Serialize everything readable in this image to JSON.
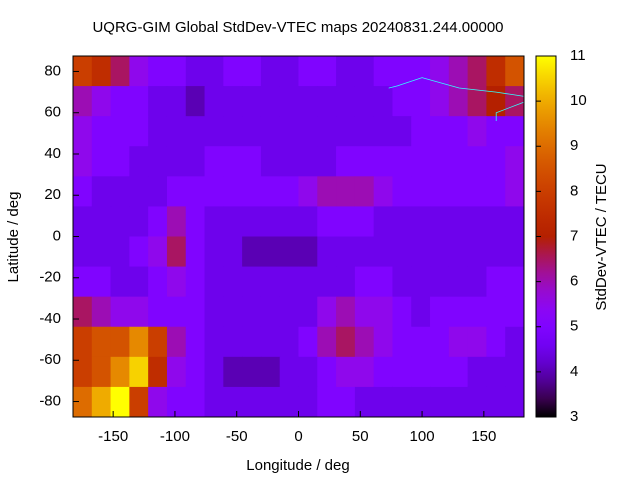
{
  "chart_data": {
    "type": "heatmap",
    "title": "UQRG-GIM Global StdDev-VTEC maps 20240831.244.00000",
    "x_label": "Longitude / deg",
    "y_label": "Latitude / deg",
    "colorbar_label": "StdDev-VTEC / TECU",
    "xlim": [
      -182.5,
      182.5
    ],
    "ylim": [
      -87.5,
      87.5
    ],
    "xticks": [
      -150,
      -100,
      -50,
      0,
      50,
      100,
      150
    ],
    "yticks": [
      -80,
      -60,
      -40,
      -20,
      0,
      20,
      40,
      60,
      80
    ],
    "zlim": [
      3,
      11
    ],
    "zticks": [
      3,
      4,
      5,
      6,
      7,
      8,
      9,
      10,
      11
    ],
    "palette": "rgbformulae-7-5-15",
    "coastline_color": "#33ffff",
    "z": [
      [
        8,
        7.5,
        6.5,
        5.5,
        5,
        5,
        4.5,
        4.5,
        5,
        5,
        4.5,
        4.5,
        5,
        5,
        4.5,
        4.5,
        5,
        5,
        5,
        5.5,
        6,
        6.5,
        7.5,
        8.5
      ],
      [
        6,
        5.5,
        5,
        5,
        4.5,
        4.5,
        4,
        4.5,
        4.5,
        4.5,
        4.5,
        4.5,
        4.5,
        4.5,
        4.5,
        4.5,
        4.5,
        5,
        5,
        5.5,
        6,
        6.5,
        7,
        6.5
      ],
      [
        5.5,
        5,
        5,
        5,
        4.5,
        4.5,
        4.5,
        4.5,
        4.5,
        4.5,
        4.5,
        4.5,
        4.5,
        4.5,
        4.5,
        4.5,
        4.5,
        4.5,
        5,
        5,
        5,
        5.5,
        5,
        5
      ],
      [
        5.5,
        5,
        5,
        4.5,
        4.5,
        4.5,
        4.5,
        5,
        5,
        5,
        4.5,
        4.5,
        4.5,
        4.5,
        5,
        5,
        5,
        5,
        5,
        5,
        5,
        5,
        5,
        5.5
      ],
      [
        5,
        4.5,
        4.5,
        4.5,
        4.5,
        5,
        5,
        5,
        5,
        5,
        5,
        5,
        5.5,
        6,
        6,
        6,
        5.5,
        5,
        5,
        5,
        5,
        5,
        5,
        5.5
      ],
      [
        4.5,
        4.5,
        4.5,
        4.5,
        5,
        6,
        5,
        4.5,
        4.5,
        4.5,
        4.5,
        4.5,
        4.5,
        5,
        5,
        5,
        4.5,
        4.5,
        4.5,
        4.5,
        4.5,
        4.5,
        4.5,
        4.5
      ],
      [
        4.5,
        4.5,
        4.5,
        5,
        5.5,
        6.5,
        5,
        4.5,
        4.5,
        4,
        4,
        4,
        4,
        4.5,
        4.5,
        4.5,
        4.5,
        4.5,
        4.5,
        4.5,
        4.5,
        4.5,
        4.5,
        4.5
      ],
      [
        5,
        5,
        4.5,
        4.5,
        5,
        5.5,
        5,
        4.5,
        4.5,
        4.5,
        4.5,
        4.5,
        4.5,
        4.5,
        4.5,
        5,
        5,
        4.5,
        4.5,
        4.5,
        4.5,
        4.5,
        5,
        5
      ],
      [
        6.5,
        6,
        5.5,
        5.5,
        5,
        5,
        5,
        4.5,
        4.5,
        4.5,
        4.5,
        4.5,
        4.5,
        5.5,
        6,
        5.5,
        5.5,
        5,
        4.5,
        5,
        5,
        5,
        5,
        5
      ],
      [
        8,
        8.5,
        8.5,
        9.5,
        8,
        6,
        5,
        4.5,
        4.5,
        4.5,
        4.5,
        4.5,
        5,
        6,
        6.5,
        6,
        5.5,
        5,
        5,
        5,
        5.5,
        5.5,
        5,
        4.5
      ],
      [
        8,
        8.5,
        9.5,
        10.5,
        7.5,
        5.5,
        5,
        4.5,
        4,
        4,
        4,
        4.5,
        4.5,
        5,
        5.5,
        5.5,
        5,
        5,
        5,
        5,
        5,
        4.5,
        4.5,
        4.5
      ],
      [
        9,
        10,
        11,
        8,
        5.5,
        5,
        5,
        4.5,
        4.5,
        4.5,
        4.5,
        4.5,
        4.5,
        5,
        5,
        4.5,
        4.5,
        4.5,
        4.5,
        4.5,
        4.5,
        4.5,
        4.5,
        4.5
      ]
    ]
  }
}
